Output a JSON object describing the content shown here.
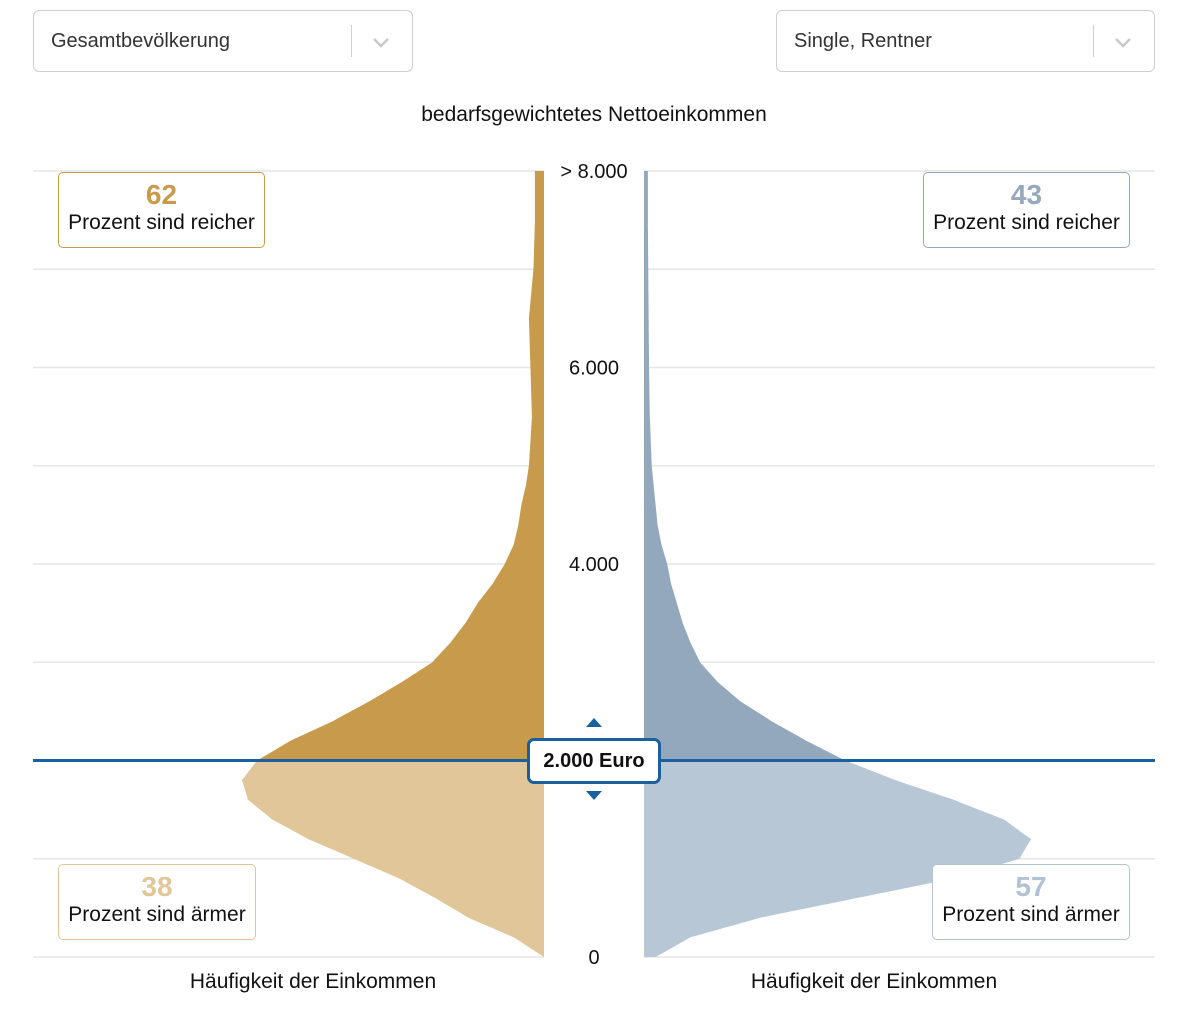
{
  "filters": {
    "left": {
      "value": "Gesamtbevölkerung"
    },
    "right": {
      "value": "Single, Rentner"
    }
  },
  "colors": {
    "left_rich": "#c89b4c",
    "left_poor": "#e0c698",
    "right_rich": "#94a8bd",
    "right_poor": "#b7c7d6",
    "left_text_rich": "#c89b4c",
    "left_text_poor": "#e0c698",
    "right_text_rich": "#95a8bd",
    "right_text_poor": "#b0c2d3",
    "marker": "#1a5f9e",
    "grid": "#e6e6e6"
  },
  "stats": {
    "left_richer": {
      "value": "62",
      "text": "Prozent sind reicher"
    },
    "left_poorer": {
      "value": "38",
      "text": "Prozent sind ärmer"
    },
    "right_richer": {
      "value": "43",
      "text": "Prozent sind reicher"
    },
    "right_poorer": {
      "value": "57",
      "text": "Prozent sind ärmer"
    }
  },
  "marker": {
    "label": "2.000 Euro",
    "value": 2000
  },
  "x_label_left": "Häufigkeit der Einkommen",
  "x_label_right": "Häufigkeit der Einkommen",
  "chart_data": {
    "type": "area",
    "title": "bedarfsgewichtetes Nettoeinkommen",
    "ylim": [
      0,
      8000
    ],
    "yticks": [
      {
        "value": 0,
        "label": "0"
      },
      {
        "value": 4000,
        "label": "4.000"
      },
      {
        "value": 6000,
        "label": "6.000"
      },
      {
        "value": 8000,
        "label": "> 8.000"
      }
    ],
    "grid": true,
    "threshold": 2000,
    "series": [
      {
        "name": "Gesamtbevölkerung",
        "side": "left",
        "y": [
          0,
          200,
          400,
          600,
          800,
          1000,
          1200,
          1400,
          1600,
          1800,
          2000,
          2200,
          2400,
          2600,
          2800,
          3000,
          3200,
          3400,
          3600,
          3800,
          4000,
          4200,
          4400,
          4600,
          4800,
          5000,
          5500,
          6000,
          6500,
          7000,
          7500,
          8000
        ],
        "density": [
          0,
          0.1,
          0.25,
          0.36,
          0.48,
          0.63,
          0.78,
          0.9,
          0.98,
          1.0,
          0.95,
          0.84,
          0.7,
          0.58,
          0.47,
          0.37,
          0.31,
          0.26,
          0.22,
          0.17,
          0.13,
          0.1,
          0.085,
          0.075,
          0.06,
          0.05,
          0.04,
          0.045,
          0.05,
          0.035,
          0.03,
          0.03
        ]
      },
      {
        "name": "Single, Rentner",
        "side": "right",
        "y": [
          0,
          200,
          400,
          600,
          800,
          1000,
          1200,
          1400,
          1600,
          1800,
          2000,
          2200,
          2400,
          2600,
          2800,
          3000,
          3200,
          3400,
          3600,
          3800,
          4000,
          4200,
          4400,
          4600,
          4800,
          5000,
          5500,
          6000,
          6500,
          7000,
          7500,
          8000
        ],
        "density": [
          0.03,
          0.12,
          0.3,
          0.55,
          0.8,
          0.97,
          1.0,
          0.93,
          0.8,
          0.65,
          0.52,
          0.42,
          0.33,
          0.25,
          0.19,
          0.145,
          0.12,
          0.1,
          0.085,
          0.07,
          0.06,
          0.045,
          0.035,
          0.03,
          0.025,
          0.02,
          0.015,
          0.013,
          0.012,
          0.011,
          0.01,
          0.01
        ]
      }
    ]
  }
}
